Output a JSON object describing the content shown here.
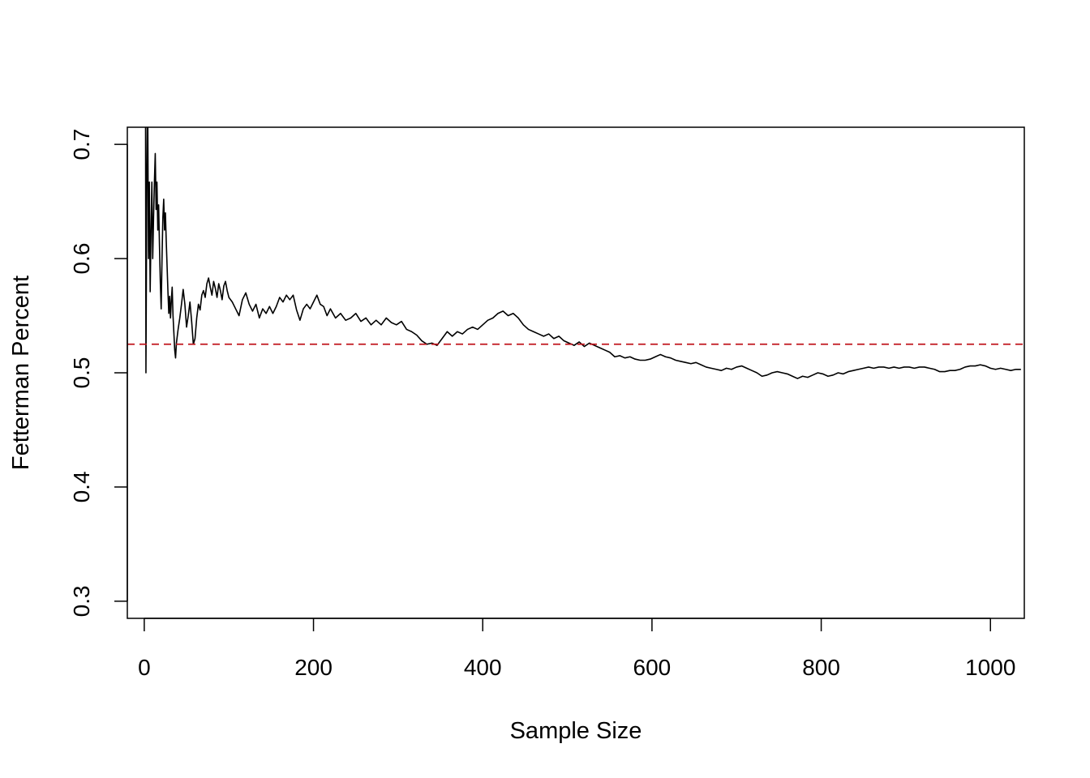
{
  "chart_data": {
    "type": "line",
    "title": "",
    "xlabel": "Sample Size",
    "ylabel": "Fetterman Percent",
    "xlim": [
      -20,
      1040
    ],
    "ylim": [
      0.285,
      0.715
    ],
    "x_ticks": [
      0,
      200,
      400,
      600,
      800,
      1000
    ],
    "y_ticks": [
      0.3,
      0.4,
      0.5,
      0.6,
      0.7
    ],
    "x_tick_labels": [
      "0",
      "200",
      "400",
      "600",
      "800",
      "1000"
    ],
    "y_tick_labels": [
      "0.3",
      "0.4",
      "0.5",
      "0.6",
      "0.7"
    ],
    "grid": false,
    "legend": "none",
    "reference_line": {
      "y": 0.525,
      "style": "dashed",
      "color": "#c0141c"
    },
    "series": [
      {
        "color": "#000000",
        "points": [
          [
            1,
            1.0
          ],
          [
            2,
            0.5
          ],
          [
            3,
            0.667
          ],
          [
            4,
            0.75
          ],
          [
            5,
            0.6
          ],
          [
            6,
            0.667
          ],
          [
            7,
            0.571
          ],
          [
            8,
            0.625
          ],
          [
            9,
            0.667
          ],
          [
            10,
            0.6
          ],
          [
            11,
            0.636
          ],
          [
            12,
            0.667
          ],
          [
            13,
            0.692
          ],
          [
            14,
            0.643
          ],
          [
            15,
            0.667
          ],
          [
            16,
            0.625
          ],
          [
            17,
            0.647
          ],
          [
            18,
            0.611
          ],
          [
            19,
            0.579
          ],
          [
            20,
            0.556
          ],
          [
            21,
            0.6
          ],
          [
            22,
            0.636
          ],
          [
            23,
            0.652
          ],
          [
            24,
            0.625
          ],
          [
            25,
            0.64
          ],
          [
            26,
            0.615
          ],
          [
            27,
            0.593
          ],
          [
            28,
            0.571
          ],
          [
            29,
            0.552
          ],
          [
            30,
            0.567
          ],
          [
            31,
            0.548
          ],
          [
            32,
            0.563
          ],
          [
            33,
            0.575
          ],
          [
            34,
            0.55
          ],
          [
            35,
            0.535
          ],
          [
            36,
            0.52
          ],
          [
            37,
            0.513
          ],
          [
            38,
            0.526
          ],
          [
            40,
            0.538
          ],
          [
            42,
            0.548
          ],
          [
            44,
            0.56
          ],
          [
            46,
            0.573
          ],
          [
            48,
            0.56
          ],
          [
            50,
            0.54
          ],
          [
            52,
            0.55
          ],
          [
            54,
            0.562
          ],
          [
            56,
            0.545
          ],
          [
            58,
            0.525
          ],
          [
            60,
            0.53
          ],
          [
            62,
            0.548
          ],
          [
            64,
            0.56
          ],
          [
            66,
            0.555
          ],
          [
            68,
            0.568
          ],
          [
            70,
            0.572
          ],
          [
            72,
            0.566
          ],
          [
            74,
            0.578
          ],
          [
            76,
            0.583
          ],
          [
            78,
            0.575
          ],
          [
            80,
            0.568
          ],
          [
            82,
            0.58
          ],
          [
            84,
            0.574
          ],
          [
            86,
            0.566
          ],
          [
            88,
            0.578
          ],
          [
            90,
            0.572
          ],
          [
            92,
            0.564
          ],
          [
            94,
            0.576
          ],
          [
            96,
            0.58
          ],
          [
            98,
            0.572
          ],
          [
            100,
            0.566
          ],
          [
            104,
            0.562
          ],
          [
            108,
            0.556
          ],
          [
            112,
            0.55
          ],
          [
            116,
            0.564
          ],
          [
            120,
            0.57
          ],
          [
            124,
            0.56
          ],
          [
            128,
            0.554
          ],
          [
            132,
            0.56
          ],
          [
            136,
            0.548
          ],
          [
            140,
            0.556
          ],
          [
            144,
            0.552
          ],
          [
            148,
            0.558
          ],
          [
            152,
            0.552
          ],
          [
            156,
            0.558
          ],
          [
            160,
            0.566
          ],
          [
            164,
            0.562
          ],
          [
            168,
            0.568
          ],
          [
            172,
            0.564
          ],
          [
            176,
            0.568
          ],
          [
            180,
            0.555
          ],
          [
            184,
            0.546
          ],
          [
            188,
            0.556
          ],
          [
            192,
            0.56
          ],
          [
            196,
            0.556
          ],
          [
            200,
            0.562
          ],
          [
            204,
            0.568
          ],
          [
            208,
            0.56
          ],
          [
            212,
            0.558
          ],
          [
            216,
            0.55
          ],
          [
            220,
            0.556
          ],
          [
            226,
            0.548
          ],
          [
            232,
            0.552
          ],
          [
            238,
            0.546
          ],
          [
            244,
            0.548
          ],
          [
            250,
            0.552
          ],
          [
            256,
            0.545
          ],
          [
            262,
            0.548
          ],
          [
            268,
            0.542
          ],
          [
            274,
            0.546
          ],
          [
            280,
            0.542
          ],
          [
            286,
            0.548
          ],
          [
            292,
            0.544
          ],
          [
            298,
            0.542
          ],
          [
            304,
            0.545
          ],
          [
            310,
            0.538
          ],
          [
            316,
            0.536
          ],
          [
            322,
            0.533
          ],
          [
            328,
            0.528
          ],
          [
            334,
            0.525
          ],
          [
            340,
            0.526
          ],
          [
            346,
            0.524
          ],
          [
            352,
            0.53
          ],
          [
            358,
            0.536
          ],
          [
            364,
            0.532
          ],
          [
            370,
            0.536
          ],
          [
            376,
            0.534
          ],
          [
            382,
            0.538
          ],
          [
            388,
            0.54
          ],
          [
            394,
            0.538
          ],
          [
            400,
            0.542
          ],
          [
            406,
            0.546
          ],
          [
            412,
            0.548
          ],
          [
            418,
            0.552
          ],
          [
            424,
            0.554
          ],
          [
            430,
            0.55
          ],
          [
            436,
            0.552
          ],
          [
            442,
            0.548
          ],
          [
            448,
            0.542
          ],
          [
            454,
            0.538
          ],
          [
            460,
            0.536
          ],
          [
            466,
            0.534
          ],
          [
            472,
            0.532
          ],
          [
            478,
            0.534
          ],
          [
            484,
            0.53
          ],
          [
            490,
            0.532
          ],
          [
            496,
            0.528
          ],
          [
            502,
            0.526
          ],
          [
            508,
            0.524
          ],
          [
            514,
            0.527
          ],
          [
            520,
            0.523
          ],
          [
            526,
            0.526
          ],
          [
            532,
            0.524
          ],
          [
            538,
            0.522
          ],
          [
            544,
            0.52
          ],
          [
            550,
            0.518
          ],
          [
            556,
            0.514
          ],
          [
            562,
            0.515
          ],
          [
            568,
            0.513
          ],
          [
            574,
            0.514
          ],
          [
            580,
            0.512
          ],
          [
            586,
            0.511
          ],
          [
            592,
            0.511
          ],
          [
            598,
            0.512
          ],
          [
            604,
            0.514
          ],
          [
            610,
            0.516
          ],
          [
            616,
            0.514
          ],
          [
            622,
            0.513
          ],
          [
            628,
            0.511
          ],
          [
            634,
            0.51
          ],
          [
            640,
            0.509
          ],
          [
            646,
            0.508
          ],
          [
            652,
            0.509
          ],
          [
            658,
            0.507
          ],
          [
            664,
            0.505
          ],
          [
            670,
            0.504
          ],
          [
            676,
            0.503
          ],
          [
            682,
            0.502
          ],
          [
            688,
            0.504
          ],
          [
            694,
            0.503
          ],
          [
            700,
            0.505
          ],
          [
            706,
            0.506
          ],
          [
            712,
            0.504
          ],
          [
            718,
            0.502
          ],
          [
            724,
            0.5
          ],
          [
            730,
            0.497
          ],
          [
            736,
            0.498
          ],
          [
            742,
            0.5
          ],
          [
            748,
            0.501
          ],
          [
            754,
            0.5
          ],
          [
            760,
            0.499
          ],
          [
            766,
            0.497
          ],
          [
            772,
            0.495
          ],
          [
            778,
            0.497
          ],
          [
            784,
            0.496
          ],
          [
            790,
            0.498
          ],
          [
            796,
            0.5
          ],
          [
            802,
            0.499
          ],
          [
            808,
            0.497
          ],
          [
            814,
            0.498
          ],
          [
            820,
            0.5
          ],
          [
            826,
            0.499
          ],
          [
            832,
            0.501
          ],
          [
            838,
            0.502
          ],
          [
            844,
            0.503
          ],
          [
            850,
            0.504
          ],
          [
            856,
            0.505
          ],
          [
            862,
            0.504
          ],
          [
            868,
            0.505
          ],
          [
            874,
            0.505
          ],
          [
            880,
            0.504
          ],
          [
            886,
            0.505
          ],
          [
            892,
            0.504
          ],
          [
            898,
            0.505
          ],
          [
            904,
            0.505
          ],
          [
            910,
            0.504
          ],
          [
            916,
            0.505
          ],
          [
            922,
            0.505
          ],
          [
            928,
            0.504
          ],
          [
            934,
            0.503
          ],
          [
            940,
            0.501
          ],
          [
            946,
            0.501
          ],
          [
            952,
            0.502
          ],
          [
            958,
            0.502
          ],
          [
            964,
            0.503
          ],
          [
            970,
            0.505
          ],
          [
            976,
            0.506
          ],
          [
            982,
            0.506
          ],
          [
            988,
            0.507
          ],
          [
            994,
            0.506
          ],
          [
            1000,
            0.504
          ],
          [
            1006,
            0.503
          ],
          [
            1012,
            0.504
          ],
          [
            1018,
            0.503
          ],
          [
            1024,
            0.502
          ],
          [
            1030,
            0.503
          ],
          [
            1036,
            0.503
          ]
        ]
      }
    ]
  }
}
